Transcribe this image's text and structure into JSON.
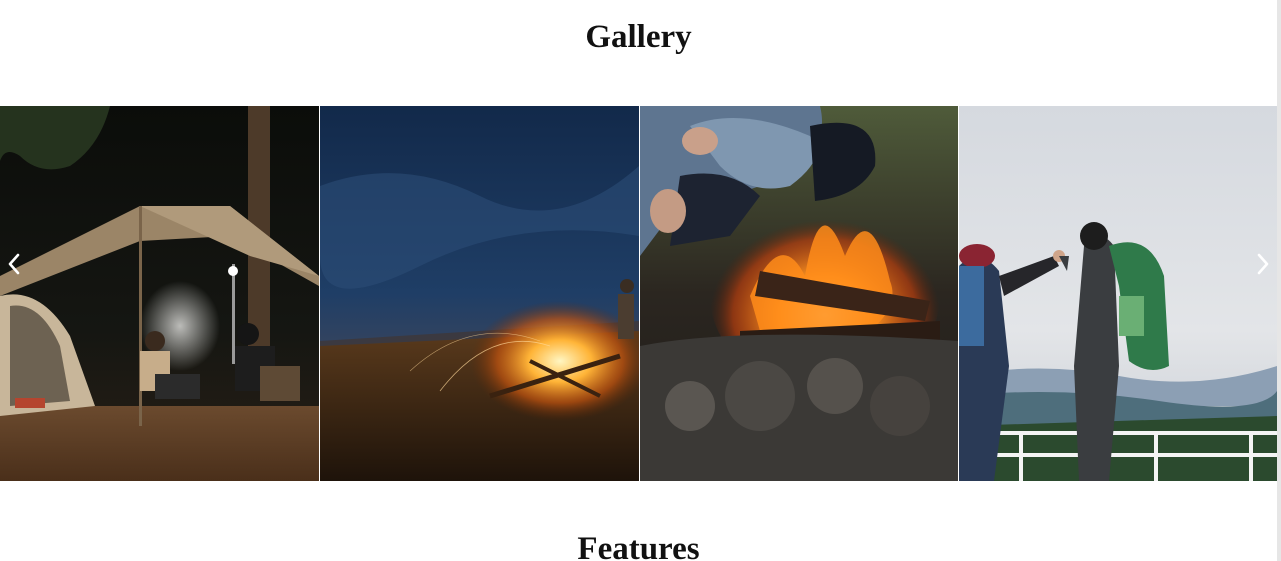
{
  "gallery": {
    "title": "Gallery",
    "slides": [
      {
        "subject": "tent-camp-at-night"
      },
      {
        "subject": "beach-campfire-at-dusk"
      },
      {
        "subject": "campfire-closeup"
      },
      {
        "subject": "hikers-high-five"
      }
    ],
    "prev_icon": "chevron-left-icon",
    "next_icon": "chevron-right-icon"
  },
  "features": {
    "title": "Features"
  }
}
